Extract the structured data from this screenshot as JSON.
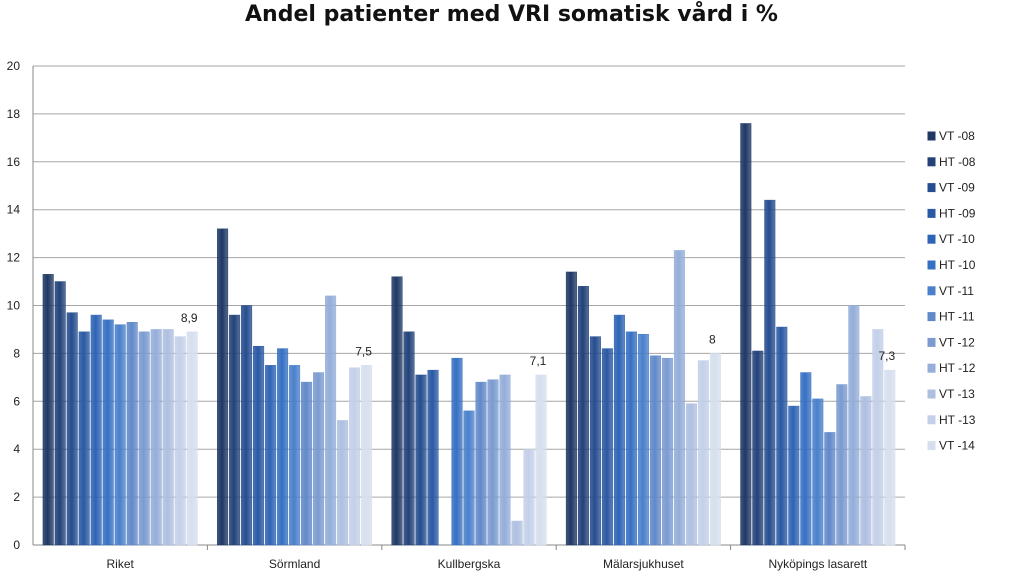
{
  "chart_data": {
    "type": "bar",
    "title": "Andel patienter med VRI somatisk vård i %",
    "xlabel": "",
    "ylabel": "",
    "ylim": [
      0,
      20
    ],
    "yticks": [
      0,
      2,
      4,
      6,
      8,
      10,
      12,
      14,
      16,
      18,
      20
    ],
    "grid": true,
    "legend_position": "right",
    "categories": [
      "Riket",
      "Sörmland",
      "Kullbergska",
      "Mälarsjukhuset",
      "Nyköpings lasarett"
    ],
    "series": [
      {
        "name": "VT -08",
        "color": "#1f3864",
        "values": [
          11.3,
          13.2,
          11.2,
          11.4,
          17.6
        ]
      },
      {
        "name": "HT -08",
        "color": "#23427a",
        "values": [
          11.0,
          9.6,
          8.9,
          10.8,
          8.1
        ]
      },
      {
        "name": "VT -09",
        "color": "#264d8f",
        "values": [
          9.7,
          10.0,
          7.1,
          8.7,
          14.4
        ]
      },
      {
        "name": "HT -09",
        "color": "#2a59a3",
        "values": [
          8.9,
          8.3,
          7.3,
          8.2,
          9.1
        ]
      },
      {
        "name": "VT -10",
        "color": "#2e64b5",
        "values": [
          9.6,
          7.5,
          null,
          9.6,
          5.8
        ]
      },
      {
        "name": "HT -10",
        "color": "#3670c2",
        "values": [
          9.4,
          8.2,
          7.8,
          8.9,
          7.2
        ]
      },
      {
        "name": "VT -11",
        "color": "#4a80cb",
        "values": [
          9.2,
          7.5,
          5.6,
          8.8,
          6.1
        ]
      },
      {
        "name": "HT -11",
        "color": "#6189c9",
        "values": [
          9.3,
          6.8,
          6.8,
          7.9,
          4.7
        ]
      },
      {
        "name": "VT -12",
        "color": "#7b9bd0",
        "values": [
          8.9,
          7.2,
          6.9,
          7.8,
          6.7
        ]
      },
      {
        "name": "HT -12",
        "color": "#94aed9",
        "values": [
          9.0,
          10.4,
          7.1,
          12.3,
          10.0
        ]
      },
      {
        "name": "VT -13",
        "color": "#aebfe0",
        "values": [
          9.0,
          5.2,
          1.0,
          5.9,
          6.2
        ]
      },
      {
        "name": "HT -13",
        "color": "#c3d0e8",
        "values": [
          8.7,
          7.4,
          4.0,
          7.7,
          9.0
        ]
      },
      {
        "name": "VT -14",
        "color": "#d6dfee",
        "values": [
          8.9,
          7.5,
          7.1,
          8.0,
          7.3
        ]
      }
    ],
    "data_labels": [
      {
        "category": "Riket",
        "series": "VT -14",
        "text": "8,9"
      },
      {
        "category": "Sörmland",
        "series": "VT -14",
        "text": "7,5"
      },
      {
        "category": "Kullbergska",
        "series": "VT -14",
        "text": "7,1"
      },
      {
        "category": "Mälarsjukhuset",
        "series": "VT -14",
        "text": "8"
      },
      {
        "category": "Nyköpings lasarett",
        "series": "VT -14",
        "text": "7,3"
      }
    ]
  }
}
